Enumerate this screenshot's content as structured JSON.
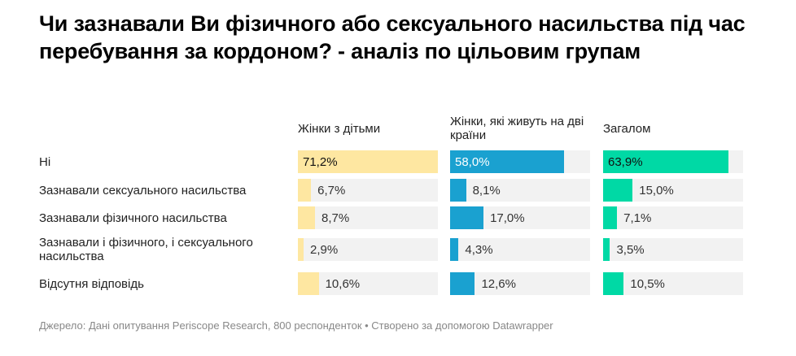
{
  "title": "Чи зазнавали Ви фізичного або сексуального насильства під час перебування за кордоном? - аналіз по цільовим групам",
  "footer": "Джерело: Дані опитування Periscope Research, 800 респонденток • Створено за допомогою Datawrapper",
  "chart_data": {
    "type": "bar",
    "categories": [
      "Ні",
      "Зазнавали сексуального насильства",
      "Зазнавали фізичного насильства",
      "Зазнавали і фізичного, і сексуального насильства",
      "Відсутня відповідь"
    ],
    "series": [
      {
        "name": "Жінки з дітьми",
        "color": "#fee7a1",
        "labels": [
          "71,2%",
          "6,7%",
          "8,7%",
          "2,9%",
          "10,6%"
        ],
        "values": [
          71.2,
          6.7,
          8.7,
          2.9,
          10.6
        ]
      },
      {
        "name": "Жінки, які живуть на дві країни",
        "color": "#1aa1d0",
        "labels": [
          "58,0%",
          "8,1%",
          "17,0%",
          "4,3%",
          "12,6%"
        ],
        "values": [
          58.0,
          8.1,
          17.0,
          4.3,
          12.6
        ]
      },
      {
        "name": "Загалом",
        "color": "#00d9a5",
        "labels": [
          "63,9%",
          "15,0%",
          "7,1%",
          "3,5%",
          "10,5%"
        ],
        "values": [
          63.9,
          15.0,
          7.1,
          3.5,
          10.5
        ]
      }
    ],
    "unit": "%"
  }
}
